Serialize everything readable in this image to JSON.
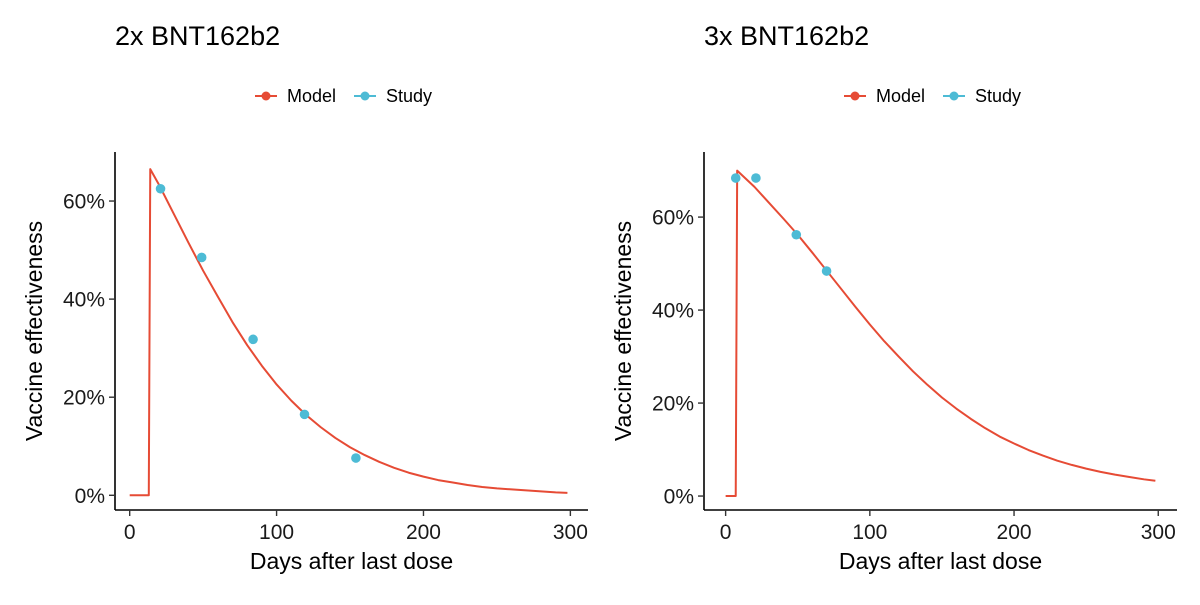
{
  "chart_data": [
    {
      "type": "line",
      "title": "2x BNT162b2",
      "xlabel": "Days after last dose",
      "ylabel": "Vaccine effectiveness",
      "xlim": [
        -10,
        312
      ],
      "ylim": [
        -3,
        70
      ],
      "xticks": [
        0,
        100,
        200,
        300
      ],
      "yticks": [
        0,
        20,
        40,
        60
      ],
      "ytick_labels": [
        "0%",
        "20%",
        "40%",
        "60%"
      ],
      "xtick_labels": [
        "0",
        "100",
        "200",
        "300"
      ],
      "grid": false,
      "legend_position": "top",
      "series": [
        {
          "name": "Model",
          "color": "#E64B35",
          "kind": "line",
          "x": [
            0,
            13,
            14,
            20,
            30,
            40,
            50,
            60,
            70,
            80,
            90,
            100,
            110,
            120,
            130,
            140,
            150,
            160,
            170,
            180,
            190,
            200,
            210,
            220,
            230,
            240,
            250,
            260,
            270,
            280,
            290,
            298
          ],
          "y": [
            0,
            0,
            66.5,
            63.3,
            57.4,
            51.5,
            45.8,
            40.5,
            35.3,
            30.6,
            26.4,
            22.6,
            19.3,
            16.4,
            13.9,
            11.7,
            9.8,
            8.2,
            6.8,
            5.6,
            4.6,
            3.8,
            3.1,
            2.6,
            2.1,
            1.7,
            1.4,
            1.2,
            1.0,
            0.8,
            0.6,
            0.5
          ]
        },
        {
          "name": "Study",
          "color": "#4DBBD5",
          "kind": "points",
          "x": [
            21,
            49,
            84,
            119,
            154
          ],
          "y": [
            62.5,
            48.5,
            31.8,
            16.5,
            7.6
          ]
        }
      ]
    },
    {
      "type": "line",
      "title": "3x BNT162b2",
      "xlabel": "Days after last dose",
      "ylabel": "Vaccine effectiveness",
      "xlim": [
        -15,
        313
      ],
      "ylim": [
        -3,
        74
      ],
      "xticks": [
        0,
        100,
        200,
        300
      ],
      "yticks": [
        0,
        20,
        40,
        60
      ],
      "ytick_labels": [
        "0%",
        "20%",
        "40%",
        "60%"
      ],
      "xtick_labels": [
        "0",
        "100",
        "200",
        "300"
      ],
      "grid": false,
      "legend_position": "top",
      "series": [
        {
          "name": "Model",
          "color": "#E64B35",
          "kind": "line",
          "x": [
            0,
            7,
            8,
            20,
            30,
            40,
            50,
            60,
            70,
            80,
            90,
            100,
            110,
            120,
            130,
            140,
            150,
            160,
            170,
            180,
            190,
            200,
            210,
            220,
            230,
            240,
            250,
            260,
            270,
            280,
            290,
            298
          ],
          "y": [
            0,
            0,
            70.0,
            66.5,
            63.1,
            59.7,
            56.2,
            52.4,
            48.5,
            44.6,
            40.7,
            36.9,
            33.3,
            30.0,
            26.8,
            23.9,
            21.2,
            18.8,
            16.6,
            14.6,
            12.8,
            11.3,
            9.9,
            8.7,
            7.6,
            6.7,
            5.9,
            5.2,
            4.6,
            4.1,
            3.6,
            3.3
          ]
        },
        {
          "name": "Study",
          "color": "#4DBBD5",
          "kind": "points",
          "x": [
            7,
            21,
            49,
            70
          ],
          "y": [
            68.4,
            68.4,
            56.2,
            48.4
          ]
        }
      ]
    }
  ]
}
